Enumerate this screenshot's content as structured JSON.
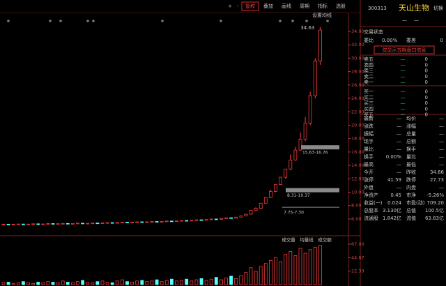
{
  "toolbar": {
    "items": [
      "+",
      "-",
      "复权",
      "叠加",
      "画线",
      "周期",
      "指标",
      "选股"
    ],
    "ma_setting": "设置均线"
  },
  "chart_data": {
    "type": "candlestick",
    "up_color": "#ff3c3c",
    "down_color": "#54ffff",
    "ylim": [
      4.33,
      35
    ],
    "yticks": [
      {
        "value": 6,
        "label": "6.00"
      },
      {
        "value": 8,
        "label": "8.00"
      },
      {
        "value": 10,
        "label": "10.00"
      },
      {
        "value": 12,
        "label": "12.00"
      },
      {
        "value": 14,
        "label": "14.00"
      },
      {
        "value": 16,
        "label": "16.00"
      },
      {
        "value": 18,
        "label": "18.00"
      },
      {
        "value": 20,
        "label": "20.00"
      },
      {
        "value": 22,
        "label": "22.00"
      },
      {
        "value": 24,
        "label": "24.00"
      },
      {
        "value": 26,
        "label": "26.00"
      },
      {
        "value": 28,
        "label": "28.00"
      },
      {
        "value": 30,
        "label": "30.00"
      },
      {
        "value": 32,
        "label": "32.00"
      },
      {
        "value": 34,
        "label": "34.00"
      }
    ],
    "candles": [
      [
        5.2,
        5.25,
        5.15,
        5.22
      ],
      [
        5.22,
        5.26,
        5.16,
        5.18
      ],
      [
        5.18,
        5.24,
        5.15,
        5.21
      ],
      [
        5.21,
        5.28,
        5.18,
        5.25
      ],
      [
        5.25,
        5.27,
        5.19,
        5.2
      ],
      [
        5.2,
        5.26,
        5.17,
        5.24
      ],
      [
        5.24,
        5.3,
        5.2,
        5.28
      ],
      [
        5.28,
        5.3,
        5.2,
        5.22
      ],
      [
        5.22,
        5.28,
        5.2,
        5.26
      ],
      [
        5.26,
        5.34,
        5.24,
        5.32
      ],
      [
        5.32,
        5.34,
        5.25,
        5.27
      ],
      [
        5.27,
        5.32,
        5.24,
        5.3
      ],
      [
        5.3,
        5.36,
        5.27,
        5.34
      ],
      [
        5.34,
        5.36,
        5.28,
        5.29
      ],
      [
        5.29,
        5.35,
        5.26,
        5.33
      ],
      [
        5.33,
        5.4,
        5.3,
        5.38
      ],
      [
        5.38,
        5.4,
        5.31,
        5.33
      ],
      [
        5.33,
        5.38,
        5.3,
        5.36
      ],
      [
        5.36,
        5.42,
        5.33,
        5.4
      ],
      [
        5.4,
        5.43,
        5.34,
        5.36
      ],
      [
        5.36,
        5.42,
        5.34,
        5.41
      ],
      [
        5.41,
        5.48,
        5.38,
        5.46
      ],
      [
        5.46,
        5.48,
        5.4,
        5.42
      ],
      [
        5.42,
        5.48,
        5.4,
        5.47
      ],
      [
        5.47,
        5.55,
        5.44,
        5.52
      ],
      [
        5.52,
        5.54,
        5.45,
        5.48
      ],
      [
        5.48,
        5.55,
        5.46,
        5.53
      ],
      [
        5.53,
        5.6,
        5.5,
        5.58
      ],
      [
        5.58,
        5.6,
        5.5,
        5.54
      ],
      [
        5.54,
        5.6,
        5.52,
        5.58
      ],
      [
        5.58,
        5.66,
        5.55,
        5.63
      ],
      [
        5.63,
        5.65,
        5.56,
        5.59
      ],
      [
        5.59,
        5.66,
        5.57,
        5.64
      ],
      [
        5.64,
        5.72,
        5.6,
        5.7
      ],
      [
        5.7,
        5.72,
        5.62,
        5.66
      ],
      [
        5.66,
        5.74,
        5.64,
        5.72
      ],
      [
        5.72,
        5.8,
        5.7,
        5.78
      ],
      [
        5.78,
        5.8,
        5.7,
        5.74
      ],
      [
        5.74,
        5.82,
        5.72,
        5.8
      ],
      [
        5.8,
        5.9,
        5.78,
        5.88
      ],
      [
        5.88,
        5.9,
        5.8,
        5.84
      ],
      [
        5.84,
        5.94,
        5.82,
        5.92
      ],
      [
        5.92,
        6.02,
        5.9,
        6.0
      ],
      [
        6.0,
        6.04,
        5.92,
        5.96
      ],
      [
        5.96,
        6.1,
        5.94,
        6.08
      ],
      [
        6.08,
        6.2,
        6.05,
        6.18
      ],
      [
        6.18,
        6.22,
        6.08,
        6.12
      ],
      [
        6.12,
        6.3,
        6.1,
        6.28
      ],
      [
        6.28,
        6.5,
        6.25,
        6.45
      ],
      [
        6.45,
        6.8,
        6.4,
        6.72
      ],
      [
        6.72,
        7.3,
        6.7,
        7.3
      ],
      [
        7.3,
        7.75,
        7.2,
        7.6
      ],
      [
        7.6,
        8.36,
        7.5,
        8.36
      ],
      [
        8.36,
        9.2,
        8.31,
        9.2
      ],
      [
        9.2,
        10.37,
        9.1,
        10.12
      ],
      [
        10.12,
        11.13,
        10.0,
        11.13
      ],
      [
        11.13,
        12.24,
        11.13,
        12.24
      ],
      [
        12.24,
        13.46,
        12.0,
        13.46
      ],
      [
        13.46,
        15.63,
        13.3,
        14.81
      ],
      [
        14.81,
        16.76,
        14.7,
        16.29
      ],
      [
        16.29,
        18.9,
        16.2,
        17.9
      ],
      [
        17.9,
        21.2,
        17.6,
        20.3
      ],
      [
        20.3,
        25.0,
        20.0,
        24.4
      ],
      [
        24.4,
        30.0,
        24.0,
        29.6
      ],
      [
        29.6,
        34.63,
        29.0,
        34.2
      ]
    ],
    "high_label": "34.63",
    "ranges": [
      {
        "text": "15.63-16.76",
        "level": 16.7
      },
      {
        "text": "8.31-10.37",
        "level": 10.3
      },
      {
        "text": "7.75-7.30",
        "level": 7.75
      }
    ],
    "event_markers": [
      "*",
      "*",
      "*",
      "*",
      "*",
      "*",
      "*",
      "*",
      "*",
      "*",
      "*"
    ],
    "volume": {
      "legend": [
        "成交量",
        "均量线",
        "成交额"
      ],
      "ylim": [
        0,
        67
      ],
      "yticks": [
        {
          "value": 22.33,
          "label": "22.33"
        },
        {
          "value": 44.67,
          "label": "44.67"
        },
        {
          "value": 67,
          "label": "67.00"
        }
      ],
      "values": [
        3,
        4,
        2,
        3,
        5,
        3,
        2,
        4,
        3,
        5,
        4,
        3,
        6,
        4,
        3,
        5,
        7,
        4,
        3,
        5,
        6,
        4,
        3,
        6,
        8,
        5,
        4,
        6,
        7,
        5,
        6,
        8,
        5,
        7,
        9,
        6,
        7,
        9,
        6,
        8,
        10,
        7,
        9,
        12,
        8,
        11,
        14,
        10,
        15,
        20,
        28,
        22,
        30,
        35,
        40,
        45,
        38,
        50,
        55,
        48,
        60,
        52,
        58,
        62,
        65
      ]
    }
  },
  "quote_panel": {
    "code": "300313",
    "name": "天山生物",
    "switch": "切换",
    "price": "—",
    "change": "—",
    "status_label": "交易状态",
    "ratio_label": "委比",
    "ratio_value": "0.00%",
    "diff_label": "委差",
    "diff_value": "0",
    "notice": "仅显示五档盘口信息",
    "order_book": [
      {
        "label": "卖五",
        "price": "—",
        "vol": "0"
      },
      {
        "label": "卖四",
        "price": "—",
        "vol": "0"
      },
      {
        "label": "卖三",
        "price": "—",
        "vol": "0"
      },
      {
        "label": "卖二",
        "price": "—",
        "vol": "0"
      },
      {
        "label": "卖一",
        "price": "—",
        "vol": "0"
      },
      {
        "label": "买一",
        "price": "—",
        "vol": "0"
      },
      {
        "label": "买二",
        "price": "—",
        "vol": "0"
      },
      {
        "label": "买三",
        "price": "—",
        "vol": "0"
      },
      {
        "label": "买四",
        "price": "—",
        "vol": "0"
      },
      {
        "label": "买五",
        "price": "—",
        "vol": "0"
      }
    ],
    "stats": [
      [
        {
          "label": "最新",
          "value": "—"
        },
        {
          "label": "均价",
          "value": "—"
        }
      ],
      [
        {
          "label": "涨跌",
          "value": "—"
        },
        {
          "label": "涨幅",
          "value": "—"
        }
      ],
      [
        {
          "label": "振幅",
          "value": "—"
        },
        {
          "label": "总量",
          "value": "—"
        }
      ],
      [
        {
          "label": "现手",
          "value": "—"
        },
        {
          "label": "总额",
          "value": "—"
        }
      ],
      [
        {
          "label": "量比",
          "value": "—"
        },
        {
          "label": "换手",
          "value": "—"
        }
      ],
      [
        {
          "label": "换手",
          "value": "0.00%"
        },
        {
          "label": "量比",
          "value": "—"
        }
      ],
      [
        {
          "label": "最高",
          "value": "—"
        },
        {
          "label": "最低",
          "value": "—"
        }
      ],
      [
        {
          "label": "今开",
          "value": "—"
        },
        {
          "label": "昨收",
          "value": "34.66"
        }
      ],
      [
        {
          "label": "涨停",
          "value": "41.59",
          "color": "#ff4040"
        },
        {
          "label": "跌停",
          "value": "27.73",
          "color": "#2ee06a"
        }
      ],
      [
        {
          "label": "外盘",
          "value": "—"
        },
        {
          "label": "内盘",
          "value": "—"
        }
      ],
      [
        {
          "label": "净资产",
          "value": "0.45"
        },
        {
          "label": "市净",
          "value": "-5.26%"
        }
      ],
      [
        {
          "label": "收益(一)",
          "value": "0.024"
        },
        {
          "label": "市盈(动)",
          "value": "709.20"
        }
      ],
      [
        {
          "label": "总股本",
          "value": "3.130亿"
        },
        {
          "label": "总值",
          "value": "100.5亿"
        }
      ],
      [
        {
          "label": "流通股",
          "value": "1.842亿"
        },
        {
          "label": "流值",
          "value": "63.83亿"
        }
      ]
    ]
  }
}
